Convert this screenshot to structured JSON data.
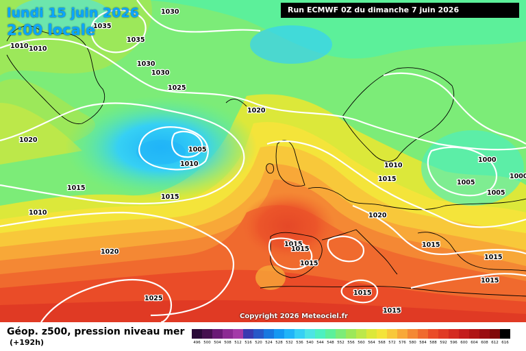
{
  "header": {
    "date": "lundi 15 juin 2026",
    "time": "2:00 locale",
    "run": "Run ECMWF 0Z du dimanche 7 juin 2026"
  },
  "copyright": "Copyright 2026 Meteociel.fr",
  "footer": {
    "title": "Géop. z500, pression niveau mer",
    "subtitle": "(+192h)"
  },
  "scale": {
    "labels": [
      "496",
      "500",
      "504",
      "508",
      "512",
      "516",
      "520",
      "524",
      "528",
      "532",
      "536",
      "540",
      "544",
      "548",
      "552",
      "556",
      "560",
      "564",
      "568",
      "572",
      "576",
      "580",
      "584",
      "588",
      "592",
      "596",
      "600",
      "604",
      "608",
      "612",
      "616"
    ],
    "colors": [
      "#2a0a38",
      "#46104f",
      "#6a1a75",
      "#8c2a93",
      "#a43aa8",
      "#3a3ab0",
      "#2858c8",
      "#1878e0",
      "#1498f2",
      "#20b4f8",
      "#36d0f4",
      "#4ce4e4",
      "#4cf0c0",
      "#5cf09a",
      "#7cec78",
      "#9ce85a",
      "#bce84a",
      "#dce83a",
      "#f4e43a",
      "#f8c83a",
      "#f8a838",
      "#f48834",
      "#f06a2e",
      "#ea4c28",
      "#e03a24",
      "#d42a20",
      "#c41c1c",
      "#b01414",
      "#9a0c10",
      "#800808",
      "#000000"
    ]
  },
  "isobars": [
    "1030",
    "1035",
    "1035",
    "1010",
    "1010",
    "1030",
    "1030",
    "1025",
    "1020",
    "1020",
    "1005",
    "1010",
    "1015",
    "1015",
    "1010",
    "1020",
    "1025",
    "1015",
    "1015",
    "1015",
    "1015",
    "1015",
    "1015",
    "1020",
    "1010",
    "1015",
    "1000",
    "1005",
    "1005",
    "1000",
    "1015",
    "1015",
    "1010"
  ],
  "icons": [
    "isobar-line",
    "coastline"
  ]
}
